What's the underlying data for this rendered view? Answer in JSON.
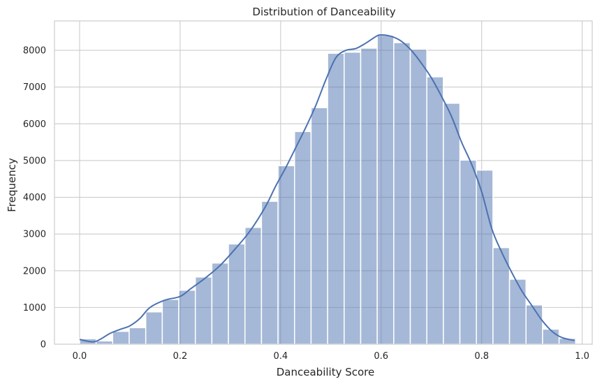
{
  "chart_data": {
    "type": "bar",
    "subtype": "histogram-with-kde",
    "title": "Distribution of Danceability",
    "xlabel": "Danceability Score",
    "ylabel": "Frequency",
    "xlim": [
      -0.05,
      1.02
    ],
    "ylim": [
      0,
      8800
    ],
    "xticks": [
      0.0,
      0.2,
      0.4,
      0.6,
      0.8,
      1.0
    ],
    "xtick_labels": [
      "0.0",
      "0.2",
      "0.4",
      "0.6",
      "0.8",
      "1.0"
    ],
    "yticks": [
      0,
      1000,
      2000,
      3000,
      4000,
      5000,
      6000,
      7000,
      8000
    ],
    "ytick_labels": [
      "0",
      "1000",
      "2000",
      "3000",
      "4000",
      "5000",
      "6000",
      "7000",
      "8000"
    ],
    "grid": true,
    "bin_start": 0.0,
    "bin_width": 0.0329,
    "bin_counts": [
      150,
      90,
      350,
      450,
      880,
      1220,
      1470,
      1830,
      2210,
      2730,
      3180,
      3890,
      4860,
      5790,
      6440,
      7920,
      7950,
      8060,
      8410,
      8210,
      8030,
      7280,
      6560,
      5010,
      4740,
      2630,
      1770,
      1070,
      410,
      160
    ],
    "kde": {
      "x": [
        0.0,
        0.03,
        0.06,
        0.08,
        0.1,
        0.12,
        0.14,
        0.17,
        0.2,
        0.22,
        0.25,
        0.28,
        0.31,
        0.34,
        0.37,
        0.39,
        0.41,
        0.43,
        0.45,
        0.47,
        0.49,
        0.51,
        0.53,
        0.55,
        0.57,
        0.59,
        0.6,
        0.62,
        0.64,
        0.66,
        0.68,
        0.7,
        0.72,
        0.74,
        0.76,
        0.78,
        0.8,
        0.82,
        0.84,
        0.86,
        0.88,
        0.9,
        0.92,
        0.94,
        0.96,
        0.985
      ],
      "y": [
        130,
        70,
        290,
        400,
        500,
        700,
        1000,
        1200,
        1300,
        1500,
        1800,
        2150,
        2600,
        3100,
        3750,
        4300,
        4800,
        5350,
        5900,
        6500,
        7200,
        7800,
        8000,
        8050,
        8200,
        8380,
        8420,
        8380,
        8250,
        8000,
        7650,
        7250,
        6750,
        6200,
        5500,
        4900,
        4150,
        3150,
        2500,
        1950,
        1450,
        1050,
        650,
        350,
        180,
        100
      ]
    }
  }
}
